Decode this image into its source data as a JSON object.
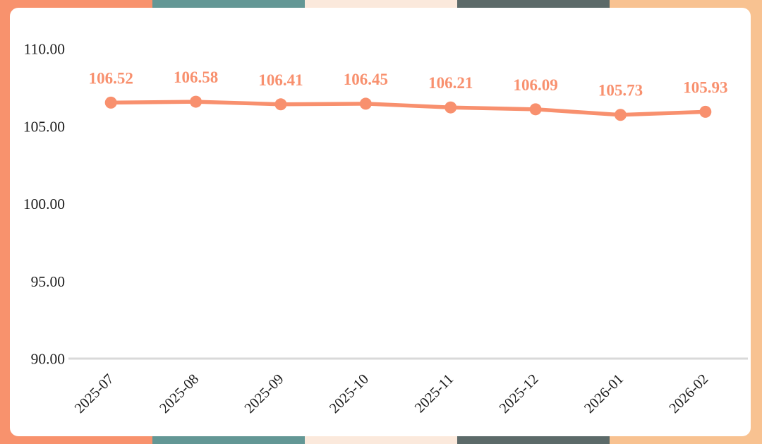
{
  "frame": {
    "top_segments": [
      "#F8926D",
      "#639795",
      "#FBE9DC",
      "#5C6A69",
      "#F8C291"
    ],
    "bottom_segments": [
      "#F8926D",
      "#639795",
      "#FBE9DC",
      "#5C6A69",
      "#F8C291"
    ],
    "left_color": "#F8926D",
    "right_color": "#F8C291"
  },
  "chart_data": {
    "type": "line",
    "title": "",
    "xlabel": "",
    "ylabel": "",
    "categories": [
      "2025-07",
      "2025-08",
      "2025-09",
      "2025-10",
      "2025-11",
      "2025-12",
      "2026-01",
      "2026-02"
    ],
    "values": [
      106.52,
      106.58,
      106.41,
      106.45,
      106.21,
      106.09,
      105.73,
      105.93
    ],
    "data_labels": [
      "106.52",
      "106.58",
      "106.41",
      "106.45",
      "106.21",
      "106.09",
      "105.73",
      "105.93"
    ],
    "y_ticks": [
      {
        "value": 110,
        "label": "110.00"
      },
      {
        "value": 105,
        "label": "105.00"
      },
      {
        "value": 100,
        "label": "100.00"
      },
      {
        "value": 95,
        "label": "95.00"
      },
      {
        "value": 90,
        "label": "90.00"
      }
    ],
    "ylim": [
      90,
      110
    ],
    "grid": "baseline-only",
    "legend": "none",
    "colors": {
      "series": "#F8906E",
      "data_label_text": "#F8906E",
      "axis_text": "#1a1a1a",
      "baseline": "#D9D9D9"
    }
  }
}
